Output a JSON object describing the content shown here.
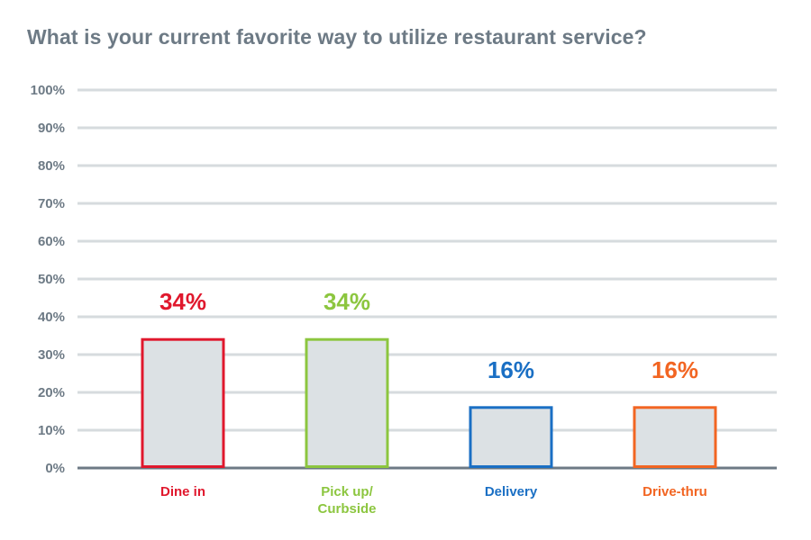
{
  "chart_data": {
    "type": "bar",
    "title": "What is your current favorite way to utilize restaurant service?",
    "xlabel": "",
    "ylabel": "",
    "ylim": [
      0,
      100
    ],
    "yticks": [
      "0%",
      "10%",
      "20%",
      "30%",
      "40%",
      "50%",
      "60%",
      "70%",
      "80%",
      "90%",
      "100%"
    ],
    "grid": true,
    "categories": [
      {
        "label_lines": [
          "Dine in"
        ],
        "value": 34,
        "data_label": "34%",
        "color": "#e0182d"
      },
      {
        "label_lines": [
          "Pick up/",
          "Curbside"
        ],
        "value": 34,
        "data_label": "34%",
        "color": "#8cc63f"
      },
      {
        "label_lines": [
          "Delivery"
        ],
        "value": 16,
        "data_label": "16%",
        "color": "#1a6fc4"
      },
      {
        "label_lines": [
          "Drive-thru"
        ],
        "value": 16,
        "data_label": "16%",
        "color": "#f26522"
      }
    ],
    "bar_fill": "#dce1e4",
    "grid_color": "#d6dbde",
    "axis_color": "#6d7a85"
  }
}
